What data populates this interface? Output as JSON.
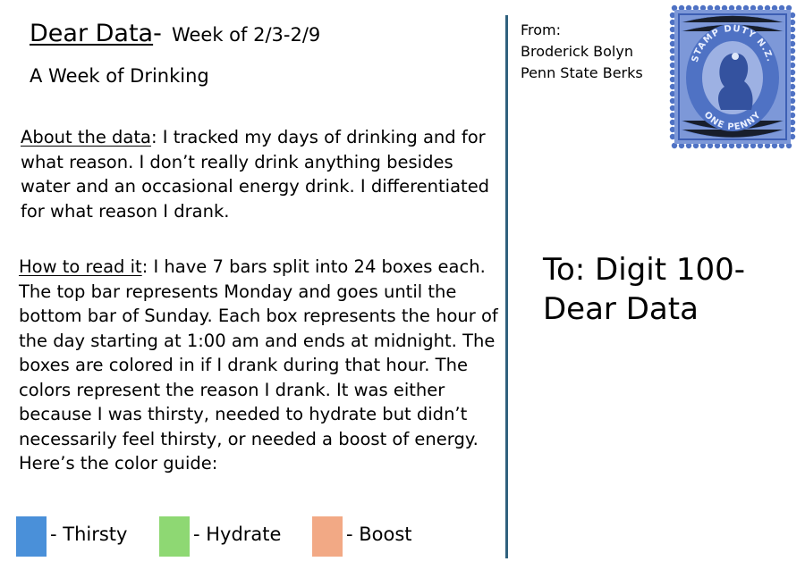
{
  "header": {
    "title": "Dear Data",
    "dash": "-",
    "week": "Week of 2/3-2/9",
    "subtitle": "A Week of Drinking"
  },
  "about": {
    "heading": "About the data",
    "text": ": I tracked my days of drinking and for what reason. I don’t really drink anything besides water and an occasional energy drink. I differentiated for what reason I drank."
  },
  "how_to_read": {
    "heading": "How to read it",
    "text": ": I have 7 bars split into 24 boxes each. The top bar represents Monday and goes until the bottom bar of Sunday. Each box represents the hour of the day starting at 1:00 am and ends at midnight. The boxes are colored in if I drank during that hour. The colors represent the reason I drank. It was either because I was thirsty, needed to hydrate but didn’t necessarily feel thirsty, or needed a boost of energy. Here’s the color guide:"
  },
  "legend": [
    {
      "label": "- Thirsty",
      "color": "#4a90d9"
    },
    {
      "label": "- Hydrate",
      "color": "#8ed873"
    },
    {
      "label": "- Boost",
      "color": "#f2a985"
    }
  ],
  "from": {
    "label": "From:",
    "name": "Broderick Bolyn",
    "school": "Penn State Berks"
  },
  "to": {
    "text": "To: Digit 100- Dear Data"
  },
  "stamp": {
    "icon": "postage-stamp-icon",
    "top_text": "STAMP DUTY N.Z.",
    "bottom_text": "ONE PENNY",
    "color": "#4f72c4"
  },
  "divider_color": "#30617e"
}
